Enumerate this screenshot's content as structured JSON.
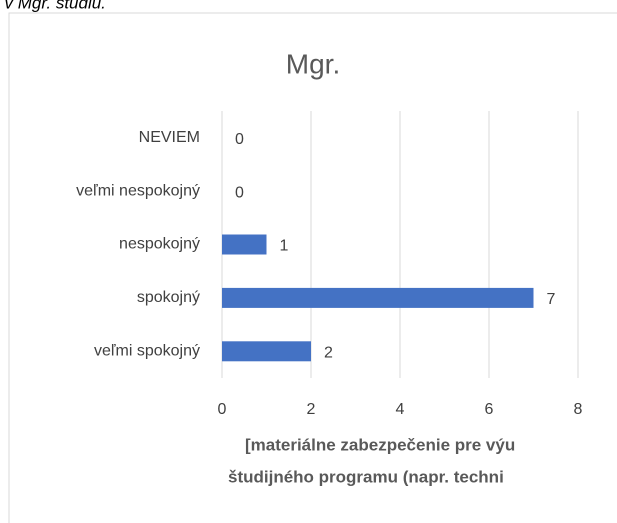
{
  "caption": "i v Mgr. štúdiu.",
  "chart_data": {
    "type": "bar",
    "orientation": "horizontal",
    "title": "Mgr.",
    "categories": [
      "veľmi spokojný",
      "spokojný",
      "nespokojný",
      "veľmi nespokojný",
      "NEVIEM"
    ],
    "values": [
      2,
      7,
      1,
      0,
      0
    ],
    "color": "#4472c4",
    "xlim": [
      0,
      8
    ],
    "xticks": [
      0,
      2,
      4,
      6,
      8
    ],
    "grid": true,
    "x_label": [
      "[materiálne zabezpečenie pre výu",
      "študijného programu (napr. techni"
    ]
  }
}
